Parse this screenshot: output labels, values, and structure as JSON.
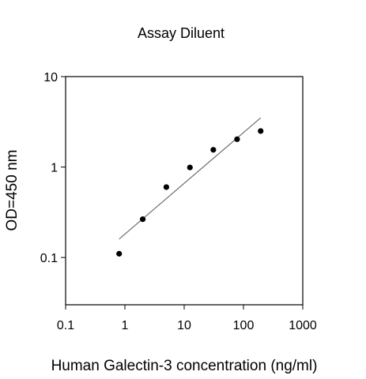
{
  "chart_data": {
    "type": "scatter",
    "title": "Assay Diluent",
    "xlabel": "Human Galectin-3 concentration (ng/ml)",
    "ylabel": "OD=450 nm",
    "x_scale": "log",
    "y_scale": "log",
    "xlim": [
      0.1,
      1000
    ],
    "ylim": [
      0.03,
      10
    ],
    "x_ticks": [
      0.1,
      1,
      10,
      100,
      1000
    ],
    "x_tick_labels": [
      "0.1",
      "1",
      "10",
      "100",
      "1000"
    ],
    "y_ticks": [
      0.1,
      1,
      10
    ],
    "y_tick_labels": [
      "0.1",
      "1",
      "10"
    ],
    "grid": false,
    "legend": "none",
    "marker_color": "#000000",
    "line_color": "#555555",
    "series": [
      {
        "points": [
          {
            "x": 0.8,
            "y": 0.11
          },
          {
            "x": 2,
            "y": 0.265
          },
          {
            "x": 5,
            "y": 0.6
          },
          {
            "x": 12.5,
            "y": 0.99
          },
          {
            "x": 31,
            "y": 1.55
          },
          {
            "x": 78,
            "y": 2.03
          },
          {
            "x": 195,
            "y": 2.5
          }
        ]
      }
    ],
    "fit_line": {
      "from": {
        "x": 0.8,
        "y": 0.16
      },
      "to": {
        "x": 195,
        "y": 3.5
      }
    }
  }
}
